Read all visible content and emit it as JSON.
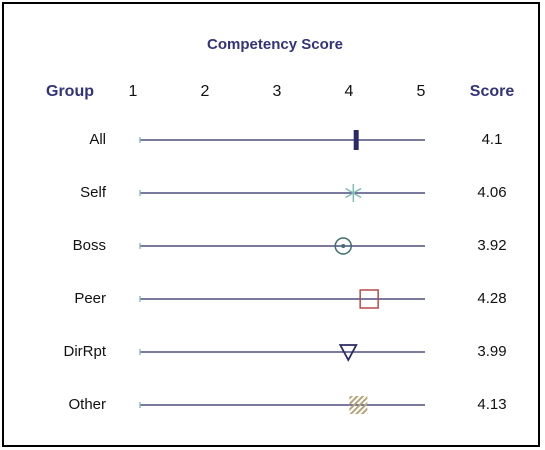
{
  "chart_data": {
    "type": "dot",
    "title": "Competency Score",
    "category_header": "Group",
    "value_header": "Score",
    "categories": [
      "All",
      "Self",
      "Boss",
      "Peer",
      "DirRpt",
      "Other"
    ],
    "values": [
      4.1,
      4.06,
      3.92,
      4.28,
      3.99,
      4.13
    ],
    "markers": [
      "bar",
      "asterisk",
      "circle",
      "square",
      "triangle",
      "hatch"
    ],
    "colors": [
      "#2a2a66",
      "#7fbcb4",
      "#3e6f68",
      "#b84a4a",
      "#2a2a66",
      "#b8a47a"
    ],
    "xlim": [
      1,
      5
    ],
    "xticks": [
      1,
      2,
      3,
      4,
      5
    ]
  }
}
